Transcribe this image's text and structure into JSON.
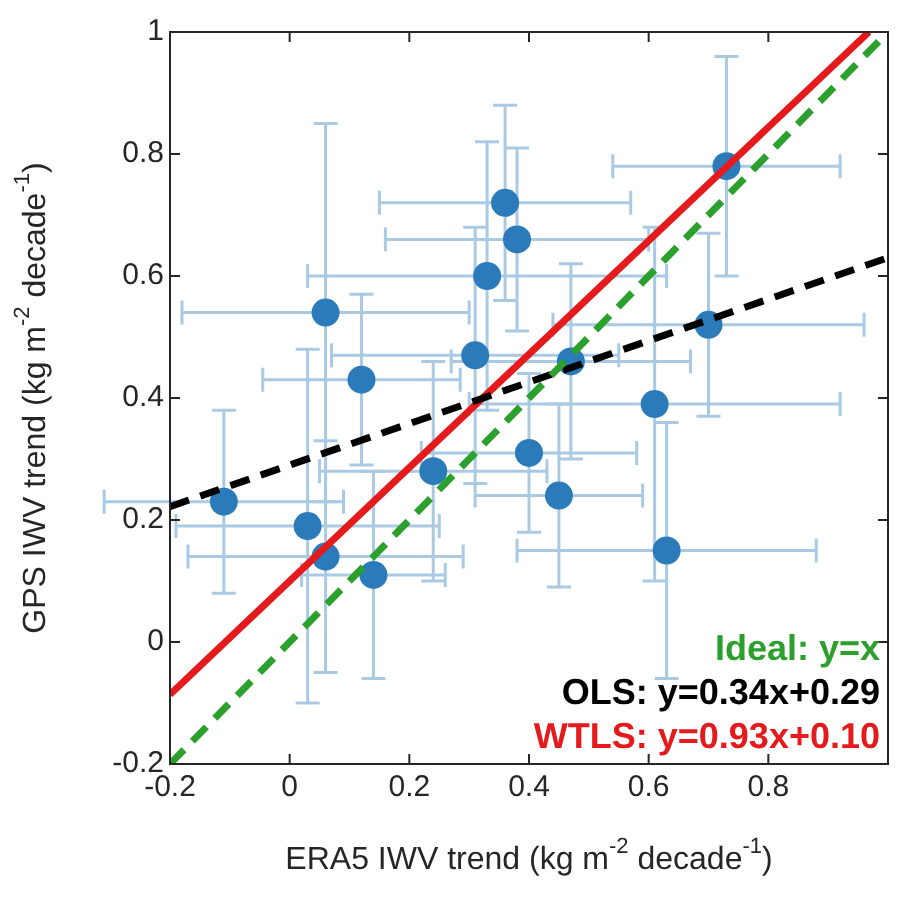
{
  "chart_data": {
    "type": "scatter",
    "xlabel": "ERA5 IWV trend (kg m$^{-2}$ decade$^{-1}$)",
    "ylabel": "GPS IWV trend (kg m$^{-2}$ decade$^{-1}$)",
    "xlim": [
      -0.2,
      1
    ],
    "xticks": [
      -0.2,
      0,
      0.2,
      0.4,
      0.6,
      0.8,
      {
        "value": 1,
        "label": null
      }
    ],
    "ylim": [
      -0.2,
      1
    ],
    "yticks": [
      -0.2,
      0,
      0.2,
      0.4,
      0.6,
      0.8,
      1
    ],
    "grid": false,
    "legend": "bottom right",
    "marker": "circle",
    "series": [
      {
        "color": "#2b7bba",
        "x": [
          0.73,
          0.36,
          0.38,
          0.33,
          0.06,
          0.7,
          0.31,
          0.47,
          0.12,
          0.61,
          0.4,
          0.24,
          0.45,
          -0.11,
          0.03,
          0.63,
          0.06,
          0.14
        ],
        "values": [
          0.78,
          0.72,
          0.66,
          0.6,
          0.54,
          0.52,
          0.47,
          0.46,
          0.43,
          0.39,
          0.31,
          0.28,
          0.24,
          0.23,
          0.19,
          0.15,
          0.14,
          0.11
        ],
        "errors": [
          0.18,
          0.16,
          0.15,
          0.22,
          0.31,
          0.15,
          0.21,
          0.16,
          0.14,
          0.29,
          0.13,
          0.18,
          0.15,
          0.15,
          0.29,
          0.21,
          0.19,
          0.17
        ],
        "xerrors": [
          0.19,
          0.21,
          0.22,
          0.3,
          0.24,
          0.26,
          0.24,
          0.2,
          0.165,
          0.31,
          0.18,
          0.19,
          0.14,
          0.2,
          0.22,
          0.25,
          0.23,
          0.12
        ]
      },
      {
        "type": "line",
        "name": "Ideal: y=x",
        "color": "#2ca02c",
        "line_style": "dashed",
        "marker": "none",
        "x": [
          -0.2,
          1
        ],
        "values": [
          -0.2,
          1
        ]
      },
      {
        "type": "line",
        "name": "OLS: y=0.34x+0.29",
        "color": "#000000",
        "line_style": "dashed",
        "marker": "none",
        "x": [
          -0.2,
          1
        ],
        "values": [
          0.222,
          0.63
        ]
      },
      {
        "type": "line",
        "name": "WTLS: y=0.93x+0.10",
        "color": "#e41a1c",
        "line_style": "solid",
        "marker": "none",
        "x": [
          -0.2,
          0.968
        ],
        "values": [
          -0.086,
          1
        ]
      }
    ]
  }
}
